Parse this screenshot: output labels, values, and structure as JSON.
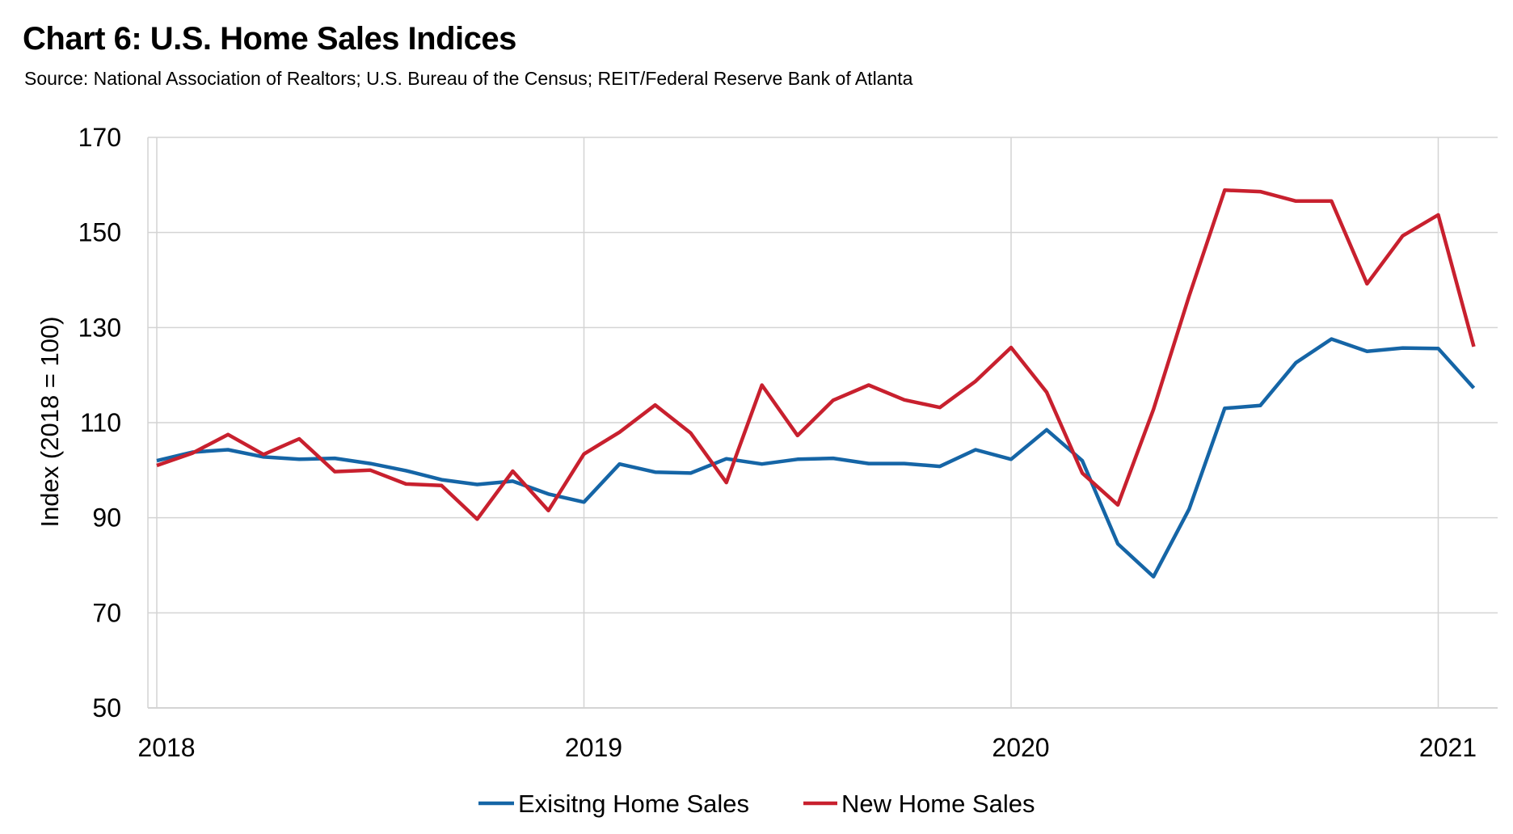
{
  "header": {
    "title": "Chart 6: U.S. Home Sales Indices",
    "subtitle": "Source: National Association of Realtors; U.S. Bureau of the Census; REIT/Federal Reserve Bank of Atlanta"
  },
  "chart_data": {
    "type": "line",
    "title": "Chart 6: U.S. Home Sales Indices",
    "subtitle": "Source: National Association of Realtors; U.S. Bureau of the Census; REIT/Federal Reserve Bank of Atlanta",
    "xlabel": "",
    "ylabel": "Index (2018 = 100)",
    "ylim": [
      50,
      170
    ],
    "yticks": [
      50,
      70,
      90,
      110,
      130,
      150,
      170
    ],
    "xlim": [
      "2018-01",
      "2021-03"
    ],
    "xticks": [
      "2018",
      "2019",
      "2020",
      "2021"
    ],
    "grid": true,
    "legend_position": "bottom",
    "x": [
      "2018-01",
      "2018-02",
      "2018-03",
      "2018-04",
      "2018-05",
      "2018-06",
      "2018-07",
      "2018-08",
      "2018-09",
      "2018-10",
      "2018-11",
      "2018-12",
      "2019-01",
      "2019-02",
      "2019-03",
      "2019-04",
      "2019-05",
      "2019-06",
      "2019-07",
      "2019-08",
      "2019-09",
      "2019-10",
      "2019-11",
      "2019-12",
      "2020-01",
      "2020-02",
      "2020-03",
      "2020-04",
      "2020-05",
      "2020-06",
      "2020-07",
      "2020-08",
      "2020-09",
      "2020-10",
      "2020-11",
      "2020-12",
      "2021-01",
      "2021-02"
    ],
    "series": [
      {
        "name": "Exisitng Home Sales",
        "color": "#1565a6",
        "values": [
          102.0,
          103.8,
          104.3,
          102.8,
          102.3,
          102.5,
          101.4,
          99.9,
          98.0,
          97.0,
          97.7,
          95.0,
          93.3,
          101.3,
          99.6,
          99.4,
          102.4,
          101.3,
          102.3,
          102.5,
          101.4,
          101.4,
          100.8,
          104.3,
          102.3,
          108.5,
          102.0,
          84.5,
          77.6,
          91.8,
          113.0,
          113.6,
          122.6,
          127.6,
          125.0,
          125.7,
          125.6,
          117.3
        ]
      },
      {
        "name": "New Home Sales",
        "color": "#c8202e",
        "values": [
          101.0,
          103.6,
          107.5,
          103.3,
          106.6,
          99.7,
          100.0,
          97.1,
          96.8,
          89.7,
          99.8,
          91.5,
          103.4,
          108.0,
          113.7,
          107.8,
          97.4,
          117.9,
          107.3,
          114.7,
          117.9,
          114.8,
          113.2,
          118.7,
          125.8,
          116.4,
          99.4,
          92.7,
          112.8,
          136.6,
          158.9,
          158.6,
          156.6,
          156.6,
          139.2,
          149.3,
          153.7,
          126.0
        ]
      }
    ]
  }
}
